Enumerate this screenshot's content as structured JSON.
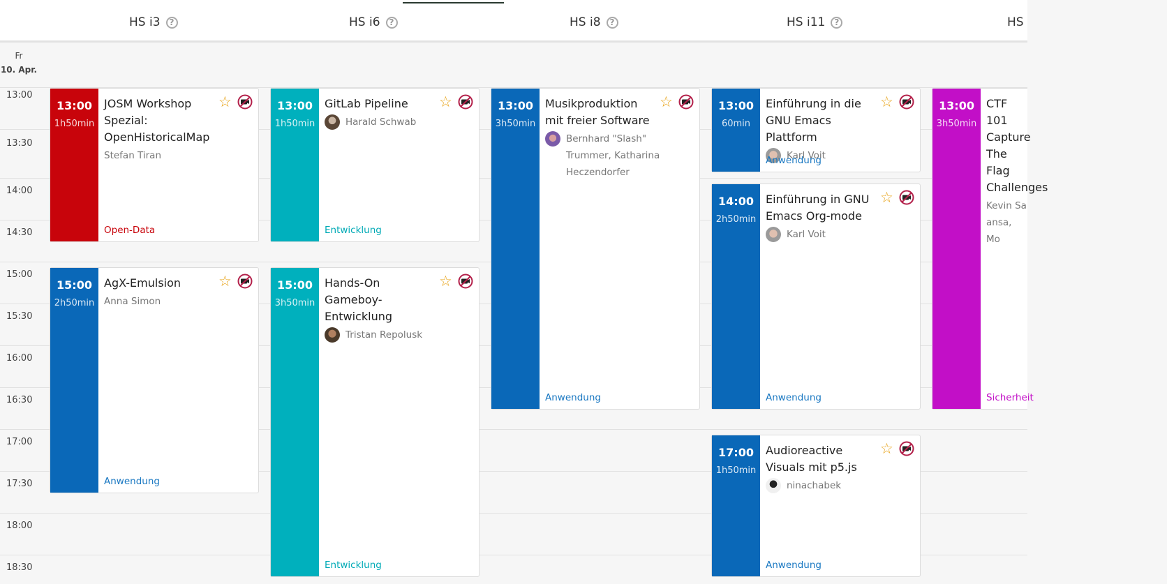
{
  "rooms": [
    "HS i3",
    "HS i6",
    "HS i8",
    "HS i11",
    "HS"
  ],
  "help_symbol": "?",
  "day": {
    "weekday": "Fr",
    "date": "10. Apr."
  },
  "times": [
    "13:00",
    "13:30",
    "14:00",
    "14:30",
    "15:00",
    "15:30",
    "16:00",
    "16:30",
    "17:00",
    "17:30",
    "18:00",
    "18:30"
  ],
  "colors": {
    "open_data": "#c8040b",
    "anwendung": "#0a68b8",
    "entwicklung": "#00b0bd",
    "sicherheit": "#c20fc7",
    "favorite_star": "#e8a317"
  },
  "sessions": [
    {
      "start": "13:00",
      "duration": "1h50min",
      "title": "JOSM Workshop Spezial: OpenHistoricalMap",
      "speakers": [
        {
          "name": "Stefan Tiran",
          "avatar": false
        }
      ],
      "track": "Open-Data",
      "icons": [
        "star-outline-icon",
        "no-recording-icon"
      ]
    },
    {
      "start": "15:00",
      "duration": "2h50min",
      "title": "AgX-Emulsion",
      "speakers": [
        {
          "name": "Anna Simon",
          "avatar": false
        }
      ],
      "track": "Anwendung",
      "icons": [
        "star-outline-icon",
        "no-recording-icon"
      ]
    },
    {
      "start": "13:00",
      "duration": "1h50min",
      "title": "GitLab Pipeline",
      "speakers": [
        {
          "name": "Harald Schwab",
          "avatar": true
        }
      ],
      "track": "Entwicklung",
      "icons": [
        "star-outline-icon",
        "no-recording-icon"
      ]
    },
    {
      "start": "15:00",
      "duration": "3h50min",
      "title": "Hands-On Gameboy-Entwicklung",
      "speakers": [
        {
          "name": "Tristan Repolusk",
          "avatar": true
        }
      ],
      "track": "Entwicklung",
      "icons": [
        "star-outline-icon",
        "no-recording-icon"
      ]
    },
    {
      "start": "13:00",
      "duration": "3h50min",
      "title": "Musikproduktion mit freier Software",
      "speakers": [
        {
          "name": "Bernhard \"Slash\" Trummer, Katharina Heczendorfer",
          "avatar": true
        }
      ],
      "track": "Anwendung",
      "icons": [
        "star-outline-icon",
        "no-recording-icon"
      ]
    },
    {
      "start": "13:00",
      "duration": "60min",
      "title": "Einführung in die GNU Emacs Plattform",
      "speakers": [
        {
          "name": "Karl Voit",
          "avatar": true
        }
      ],
      "track": "Anwendung",
      "icons": [
        "star-outline-icon",
        "no-recording-icon"
      ]
    },
    {
      "start": "14:00",
      "duration": "2h50min",
      "title": "Einführung in GNU Emacs Org-mode",
      "speakers": [
        {
          "name": "Karl Voit",
          "avatar": true
        }
      ],
      "track": "Anwendung",
      "icons": [
        "star-outline-icon",
        "no-recording-icon"
      ]
    },
    {
      "start": "17:00",
      "duration": "1h50min",
      "title": "Audioreactive Visuals mit p5.js",
      "speakers": [
        {
          "name": "ninachabek",
          "avatar": true
        }
      ],
      "track": "Anwendung",
      "icons": [
        "star-outline-icon",
        "no-recording-icon"
      ]
    },
    {
      "start": "13:00",
      "duration": "3h50min",
      "title": "CTF 101 Capture The Flag Challenges",
      "speakers": [
        {
          "name": "Kevin Sa ansa, Mo",
          "avatar": false
        }
      ],
      "track": "Sicherheit",
      "icons": []
    }
  ]
}
